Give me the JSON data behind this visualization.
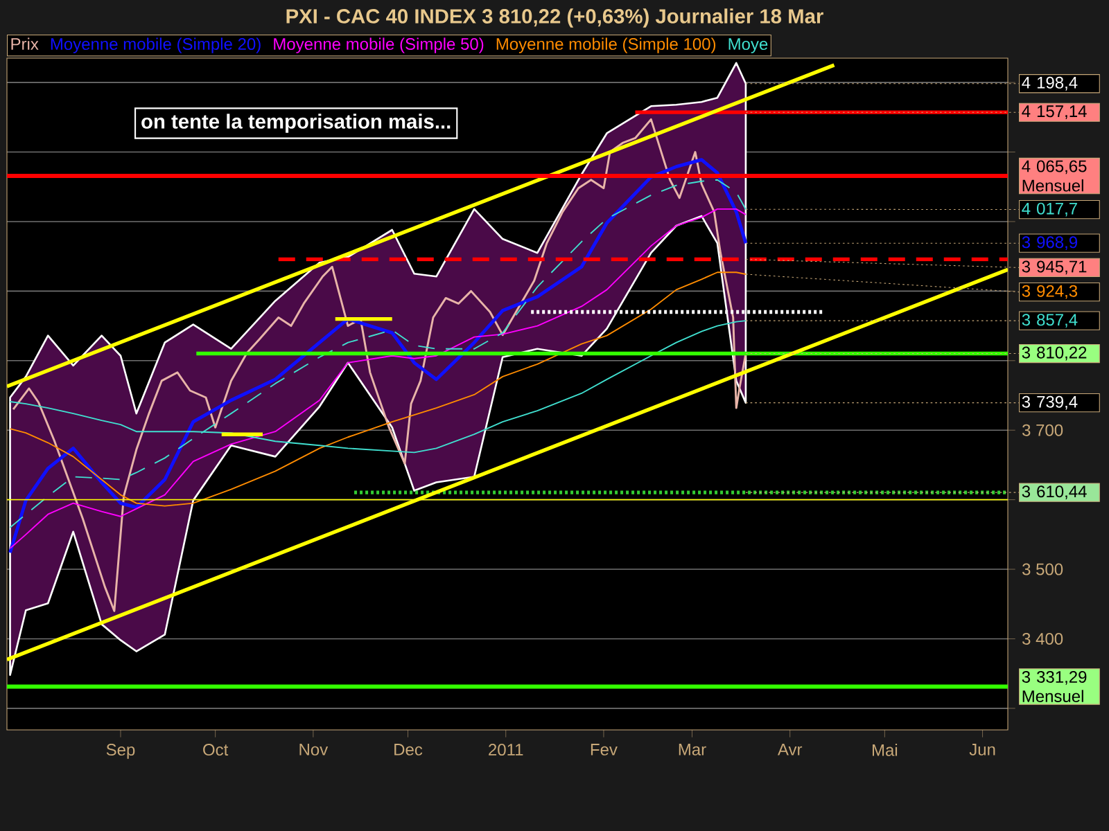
{
  "chart_data": {
    "type": "line",
    "title": "PXI - CAC 40 INDEX    3 810,22 (+0,63%)    Journalier  18 Mar",
    "x": [
      "2010-07-28",
      "2010-08-02",
      "2010-08-09",
      "2010-08-17",
      "2010-08-26",
      "2010-09-01",
      "2010-09-06",
      "2010-09-15",
      "2010-09-24",
      "2010-10-06",
      "2010-10-20",
      "2010-11-03",
      "2010-11-12",
      "2010-11-26",
      "2010-12-03",
      "2010-12-10",
      "2010-12-22",
      "2010-12-31",
      "2011-01-11",
      "2011-01-25",
      "2011-02-02",
      "2011-02-16",
      "2011-02-24",
      "2011-03-04",
      "2011-03-09",
      "2011-03-15",
      "2011-03-18"
    ],
    "series": [
      {
        "name": "Prix",
        "color": "#e8b4a8",
        "x": [
          "2010-07-29",
          "2010-08-03",
          "2010-08-06",
          "2010-08-11",
          "2010-08-20",
          "2010-08-27",
          "2010-08-30",
          "2010-09-02",
          "2010-09-06",
          "2010-09-10",
          "2010-09-14",
          "2010-09-19",
          "2010-09-23",
          "2010-09-28",
          "2010-10-01",
          "2010-10-06",
          "2010-10-11",
          "2010-10-15",
          "2010-10-21",
          "2010-10-25",
          "2010-10-29",
          "2010-11-04",
          "2010-11-07",
          "2010-11-12",
          "2010-11-16",
          "2010-11-19",
          "2010-11-25",
          "2010-11-30",
          "2010-12-02",
          "2010-12-05",
          "2010-12-09",
          "2010-12-13",
          "2010-12-17",
          "2010-12-21",
          "2010-12-27",
          "2010-12-31",
          "2011-01-05",
          "2011-01-10",
          "2011-01-14",
          "2011-01-19",
          "2011-01-24",
          "2011-01-28",
          "2011-02-01",
          "2011-02-03",
          "2011-02-07",
          "2011-02-11",
          "2011-02-16",
          "2011-02-22",
          "2011-02-25",
          "2011-03-02",
          "2011-03-04",
          "2011-03-08",
          "2011-03-10",
          "2011-03-14",
          "2011-03-15",
          "2011-03-16",
          "2011-03-18"
        ],
        "values": [
          3730,
          3760,
          3740,
          3685,
          3573,
          3475,
          3440,
          3605,
          3672,
          3724,
          3771,
          3783,
          3757,
          3747,
          3704,
          3771,
          3811,
          3831,
          3862,
          3850,
          3882,
          3921,
          3935,
          3850,
          3860,
          3783,
          3704,
          3652,
          3738,
          3771,
          3862,
          3890,
          3882,
          3900,
          3870,
          3837,
          3876,
          3915,
          3969,
          4014,
          4048,
          4060,
          4048,
          4100,
          4113,
          4120,
          4147,
          4060,
          4034,
          4100,
          4054,
          4014,
          3955,
          3862,
          3732,
          3760,
          3810.22
        ]
      },
      {
        "name": "Moyenne mobile (Simple 20)",
        "color": "#1010ff",
        "values": [
          3524,
          3599,
          3645,
          3674,
          3625,
          3595,
          3589,
          3629,
          3712,
          3743,
          3773,
          3826,
          3860,
          3840,
          3797,
          3773,
          3826,
          3872,
          3892,
          3935,
          3998,
          4064,
          4079,
          4089,
          4070,
          4014,
          3968.9
        ],
        "upper": [
          3747,
          3777,
          3836,
          3793,
          3836,
          3807,
          3724,
          3826,
          3852,
          3817,
          3886,
          3941,
          3949,
          3988,
          3925,
          3921,
          4018,
          3975,
          3955,
          4068,
          4127,
          4166,
          4168,
          4172,
          4178,
          4228,
          4198.4
        ],
        "lower": [
          3348,
          3441,
          3451,
          3554,
          3421,
          3398,
          3382,
          3406,
          3599,
          3678,
          3662,
          3734,
          3797,
          3704,
          3613,
          3625,
          3633,
          3805,
          3817,
          3807,
          3846,
          3955,
          3994,
          4008,
          3969,
          3771,
          3739.4
        ]
      },
      {
        "name": "Moyenne mobile (Simple 50)",
        "color": "#ff00ff",
        "values": [
          3530,
          3550,
          3579,
          3595,
          3583,
          3576,
          3587,
          3607,
          3655,
          3680,
          3698,
          3743,
          3797,
          3807,
          3803,
          3807,
          3834,
          3838,
          3850,
          3878,
          3902,
          3965,
          3994,
          4006,
          4018,
          4018,
          4010
        ]
      },
      {
        "name": "Moyenne mobile (Simple 100)",
        "color": "#ff8c00",
        "values": [
          3702,
          3696,
          3682,
          3662,
          3629,
          3607,
          3595,
          3591,
          3595,
          3615,
          3641,
          3674,
          3690,
          3712,
          3722,
          3732,
          3751,
          3777,
          3795,
          3824,
          3836,
          3874,
          3902,
          3917,
          3927,
          3927,
          3924.3
        ]
      },
      {
        "name": "Moye",
        "color": "#40e0d0",
        "values": [
          3741,
          3738,
          3732,
          3724,
          3714,
          3708,
          3698,
          3698,
          3698,
          3696,
          3684,
          3678,
          3674,
          3670,
          3668,
          3674,
          3694,
          3712,
          3728,
          3753,
          3773,
          3807,
          3826,
          3842,
          3850,
          3856,
          3857.4
        ]
      },
      {
        "color": "#40e0d0",
        "line_style": "dashed",
        "values": [
          3560,
          3579,
          3605,
          3633,
          3631,
          3629,
          3639,
          3660,
          3688,
          3724,
          3767,
          3805,
          3826,
          3844,
          3822,
          3817,
          3817,
          3840,
          3906,
          3971,
          4004,
          4038,
          4052,
          4058,
          4060,
          4042,
          4017.7
        ]
      },
      {
        "color": "#ff0000",
        "x": [
          "2011-02-11",
          "2011-06-09"
        ],
        "values": [
          4157.14,
          4157.14
        ]
      },
      {
        "color": "#ff0000",
        "line_style": "dashed",
        "x": [
          "2010-10-21",
          "2011-06-09"
        ],
        "values": [
          3945.71,
          3945.71
        ]
      },
      {
        "color": "#33ff00",
        "x": [
          "2010-09-25",
          "2011-06-09"
        ],
        "values": [
          3810.22,
          3810.22
        ]
      },
      {
        "color": "#33cc33",
        "line_style": "dotted",
        "x": [
          "2010-11-14",
          "2011-06-09"
        ],
        "values": [
          3610.44,
          3610.44
        ]
      },
      {
        "color": "#ffffff",
        "line_style": "dotted",
        "x": [
          "2011-01-09",
          "2011-04-12"
        ],
        "values": [
          3870,
          3870
        ]
      },
      {
        "color": "#ffff00",
        "x": [
          "2010-07-27",
          "2011-04-15"
        ],
        "values": [
          3763,
          4225
        ]
      },
      {
        "color": "#ffff00",
        "x": [
          "2010-07-27",
          "2011-06-09"
        ],
        "values": [
          3370,
          3931
        ]
      },
      {
        "color": "#ffff00",
        "x": [
          "2010-10-03",
          "2010-10-16"
        ],
        "values": [
          3694,
          3694
        ]
      },
      {
        "color": "#ffff00",
        "x": [
          "2010-11-08",
          "2010-11-26"
        ],
        "values": [
          3860,
          3860
        ]
      }
    ],
    "ref_lines": [
      {
        "axis": "y",
        "value": 4065.65,
        "label": "4 065,65 Mensuel",
        "color": "#ff0000"
      },
      {
        "axis": "y",
        "value": 3331.29,
        "label": "3 331,29 Mensuel",
        "color": "#33ff00"
      },
      {
        "axis": "y",
        "value": 3600,
        "color": "#ffff00"
      }
    ],
    "annotations": [
      "on tente la temporisation mais...",
      {
        "text": "4 198,4",
        "x": "2011-03-18",
        "y": 4198.4
      },
      {
        "text": "4 157,14",
        "x": "2011-03-18",
        "y": 4157.14
      },
      {
        "text": "4 017,7",
        "x": "2011-03-18",
        "y": 4017.7
      },
      {
        "text": "3 968,9",
        "x": "2011-03-18",
        "y": 3968.9
      },
      {
        "text": "3 945,71",
        "x": "2011-03-18",
        "y": 3945.71
      },
      {
        "text": "3 924,3",
        "x": "2011-03-18",
        "y": 3924.3
      },
      {
        "text": "3 857,4",
        "x": "2011-03-18",
        "y": 3857.4
      },
      {
        "text": "3 810,22",
        "x": "2011-03-18",
        "y": 3810.22
      },
      {
        "text": "3 739,4",
        "x": "2011-03-18",
        "y": 3739.4
      },
      {
        "text": "3 610,44",
        "x": "2011-03-18",
        "y": 3610.44
      }
    ],
    "xlim": [
      "2010-07-27",
      "2011-06-09"
    ],
    "xticks": [
      {
        "value": "2010-09-01",
        "label": "Sep"
      },
      {
        "value": "2010-10-01",
        "label": "Oct"
      },
      {
        "value": "2010-11-01",
        "label": "Nov"
      },
      {
        "value": "2010-12-01",
        "label": "Dec"
      },
      {
        "value": "2011-01-01",
        "label": "2011"
      },
      {
        "value": "2011-02-01",
        "label": "Fev"
      },
      {
        "value": "2011-03-01",
        "label": "Mar"
      },
      {
        "value": "2011-04-01",
        "label": "Avr"
      },
      {
        "value": "2011-05-01",
        "label": "Mai"
      },
      {
        "value": "2011-06-01",
        "label": "Jun"
      }
    ],
    "ylim": [
      3269,
      4235
    ],
    "yticks": [
      {
        "value": 3300,
        "label": null
      },
      {
        "value": 3400,
        "label": "3 400"
      },
      {
        "value": 3500,
        "label": "3 500"
      },
      {
        "value": 3600,
        "label": null
      },
      {
        "value": 3700,
        "label": "3 700"
      },
      {
        "value": 3800,
        "label": null
      },
      {
        "value": 3900,
        "label": null
      },
      {
        "value": 4000,
        "label": null
      },
      {
        "value": 4100,
        "label": null
      },
      {
        "value": 4200,
        "label": null
      }
    ],
    "grid": "y",
    "legend": "top left"
  }
}
